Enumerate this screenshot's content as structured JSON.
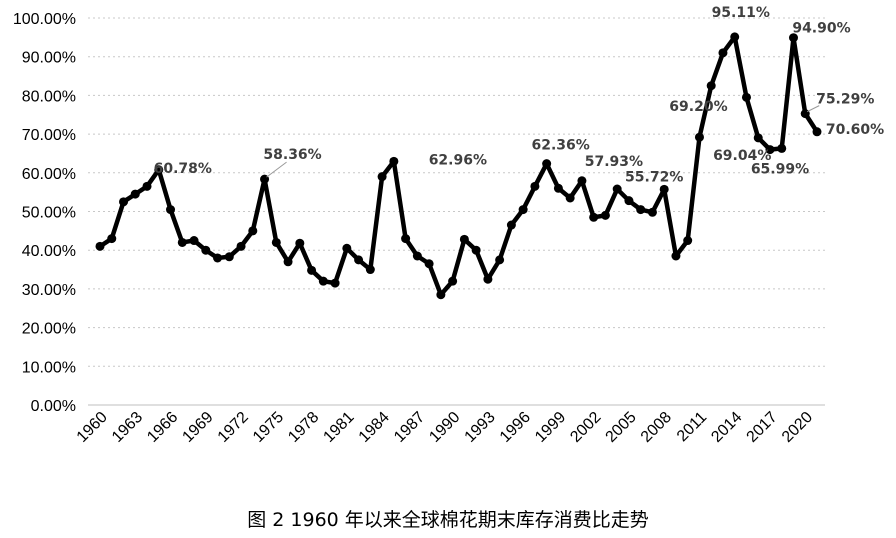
{
  "chart_data": {
    "type": "line",
    "title": "",
    "xlabel": "",
    "ylabel": "",
    "ylim": [
      0,
      100
    ],
    "y_ticks": [
      "0.00%",
      "10.00%",
      "20.00%",
      "30.00%",
      "40.00%",
      "50.00%",
      "60.00%",
      "70.00%",
      "80.00%",
      "90.00%",
      "100.00%"
    ],
    "x_ticks": [
      "1960",
      "1963",
      "1966",
      "1969",
      "1972",
      "1975",
      "1978",
      "1981",
      "1984",
      "1987",
      "1990",
      "1993",
      "1996",
      "1999",
      "2002",
      "2005",
      "2008",
      "2011",
      "2014",
      "2017",
      "2020"
    ],
    "grid": true,
    "line_color": "#000000",
    "x": [
      1960,
      1961,
      1962,
      1963,
      1964,
      1965,
      1966,
      1967,
      1968,
      1969,
      1970,
      1971,
      1972,
      1973,
      1974,
      1975,
      1976,
      1977,
      1978,
      1979,
      1980,
      1981,
      1982,
      1983,
      1984,
      1985,
      1986,
      1987,
      1988,
      1989,
      1990,
      1991,
      1992,
      1993,
      1994,
      1995,
      1996,
      1997,
      1998,
      1999,
      2000,
      2001,
      2002,
      2003,
      2004,
      2005,
      2006,
      2007,
      2008,
      2009,
      2010,
      2011,
      2012,
      2013,
      2014,
      2015,
      2016,
      2017,
      2018,
      2019,
      2020,
      2021
    ],
    "values": [
      41,
      43,
      52.5,
      54.5,
      56.5,
      60.78,
      50.5,
      42,
      42.5,
      40,
      38,
      38.3,
      41,
      45,
      58.36,
      42,
      37,
      41.8,
      34.8,
      32,
      31.5,
      40.5,
      37.5,
      35,
      59,
      62.96,
      43,
      38.5,
      36.5,
      28.5,
      32,
      42.8,
      40,
      32.5,
      37.5,
      46.5,
      50.5,
      56.5,
      62.36,
      56,
      53.5,
      57.93,
      48.5,
      49,
      55.8,
      52.8,
      50.5,
      49.8,
      55.72,
      38.5,
      42.5,
      69.2,
      82.5,
      91,
      95.11,
      79.5,
      69.04,
      65.99,
      66.3,
      94.9,
      75.29,
      70.6
    ],
    "annotations": [
      {
        "year": 1965,
        "text": "60.78%"
      },
      {
        "year": 1974,
        "text": "58.36%"
      },
      {
        "year": 1985,
        "text": "62.96%"
      },
      {
        "year": 1998,
        "text": "62.36%"
      },
      {
        "year": 2001,
        "text": "57.93%"
      },
      {
        "year": 2008,
        "text": "55.72%"
      },
      {
        "year": 2011,
        "text": "69.20%"
      },
      {
        "year": 2014,
        "text": "95.11%"
      },
      {
        "year": 2016,
        "text": "69.04%"
      },
      {
        "year": 2017,
        "text": "65.99%"
      },
      {
        "year": 2019,
        "text": "94.90%"
      },
      {
        "year": 2020,
        "text": "75.29%"
      },
      {
        "year": 2021,
        "text": "70.60%"
      }
    ]
  },
  "caption": "图 2 1960 年以来全球棉花期末库存消费比走势"
}
